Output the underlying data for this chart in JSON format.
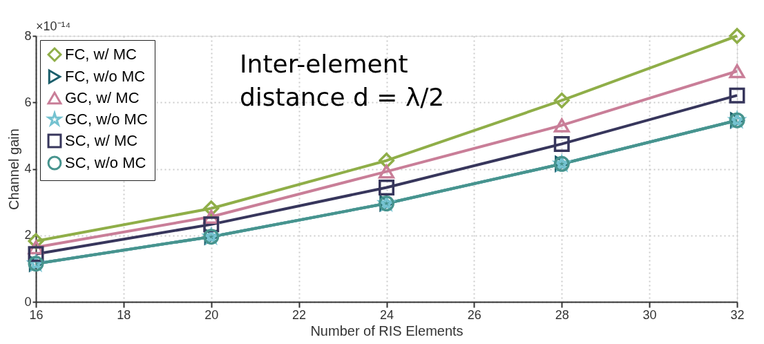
{
  "chart_data": {
    "type": "line",
    "xlabel": "Number of RIS Elements",
    "ylabel": "Channel gain",
    "x": [
      16,
      20,
      24,
      28,
      32
    ],
    "series": [
      {
        "name": "FC, w/ MC",
        "color": "#8fae48",
        "marker": "diamond",
        "values": [
          1.83,
          2.81,
          4.25,
          6.06,
          8.0
        ]
      },
      {
        "name": "FC, w/o MC",
        "color": "#1b5e6b",
        "marker": "triangle-right",
        "values": [
          1.15,
          1.96,
          2.96,
          4.15,
          5.46
        ]
      },
      {
        "name": "GC, w/ MC",
        "color": "#c97e98",
        "marker": "triangle",
        "values": [
          1.64,
          2.56,
          3.92,
          5.31,
          6.94
        ]
      },
      {
        "name": "GC, w/o MC",
        "color": "#74c2d0",
        "marker": "star",
        "values": [
          1.15,
          1.96,
          2.96,
          4.15,
          5.46
        ]
      },
      {
        "name": "SC, w/ MC",
        "color": "#37365c",
        "marker": "square",
        "values": [
          1.44,
          2.33,
          3.44,
          4.75,
          6.21
        ]
      },
      {
        "name": "SC, w/o MC",
        "color": "#47948e",
        "marker": "circle",
        "values": [
          1.15,
          1.96,
          2.96,
          4.15,
          5.46
        ]
      }
    ],
    "annotations": [
      "×10⁻¹⁴",
      "Inter-element\ndistance d = λ/2"
    ],
    "xlim": [
      16,
      32
    ],
    "xticks": [
      16,
      18,
      20,
      22,
      24,
      26,
      28,
      30,
      32
    ],
    "ylim": [
      0,
      8
    ],
    "yticks": [
      0,
      2,
      4,
      6,
      8
    ],
    "grid": true,
    "legend": "top left",
    "line_style": "solid"
  }
}
